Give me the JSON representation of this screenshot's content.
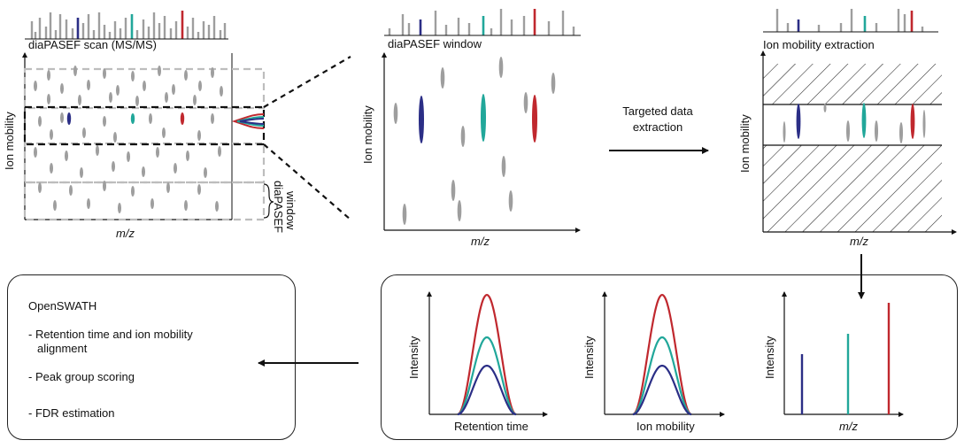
{
  "colors": {
    "blue": "#2b2e86",
    "teal": "#21a79a",
    "red": "#c0282e",
    "gray": "#9e9e9e",
    "dash_gray": "#bdbdbd"
  },
  "panel_scan": {
    "title": "diaPASEF scan (MS/MS)",
    "y_label": "Ion mobility",
    "x_label": "m/z",
    "window_label_1": "diaPASEF",
    "window_label_2": "window"
  },
  "panel_window": {
    "title": "diaPASEF window",
    "y_label": "Ion mobility",
    "x_label": "m/z"
  },
  "arrow_text": {
    "line1": "Targeted data",
    "line2": "extraction"
  },
  "panel_extraction": {
    "title": "Ion mobility extraction",
    "y_label": "Ion mobility",
    "x_label": "m/z"
  },
  "summary": {
    "title": "OpenSWATH",
    "item1_line1": "- Retention time and ion mobility",
    "item1_line2": "alignment",
    "item2": "- Peak group scoring",
    "item3": "- FDR estimation"
  },
  "plots": {
    "plot1": {
      "y_label": "Intensity",
      "x_label": "Retention time"
    },
    "plot2": {
      "y_label": "Intensity",
      "x_label": "Ion mobility"
    },
    "plot3": {
      "y_label": "Intensity",
      "x_label": "m/z"
    }
  }
}
